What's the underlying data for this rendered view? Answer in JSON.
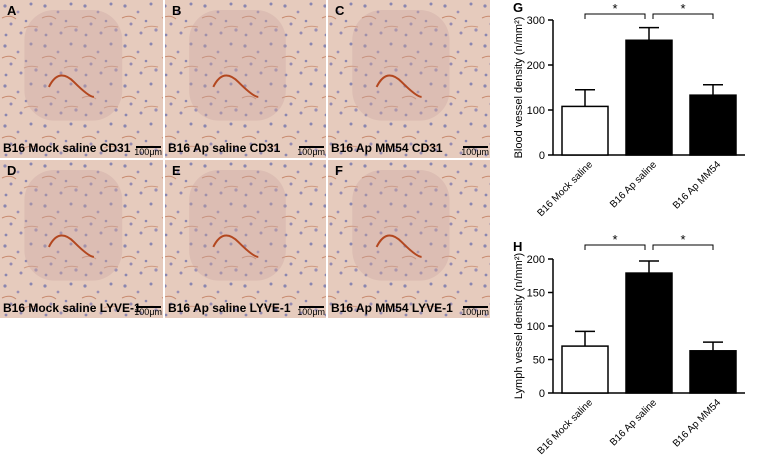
{
  "panels": [
    {
      "letter": "A",
      "caption": "B16 Mock saline CD31",
      "scale": "100μm"
    },
    {
      "letter": "B",
      "caption": "B16 Ap saline CD31",
      "scale": "100μm"
    },
    {
      "letter": "C",
      "caption": "B16 Ap MM54 CD31",
      "scale": "100μm"
    },
    {
      "letter": "D",
      "caption": "B16 Mock saline LYVE-1",
      "scale": "100μm"
    },
    {
      "letter": "E",
      "caption": "B16 Ap saline LYVE-1",
      "scale": "100μm"
    },
    {
      "letter": "F",
      "caption": "B16 Ap MM54 LYVE-1",
      "scale": "100μm"
    }
  ],
  "chart_data": [
    {
      "type": "bar",
      "panel": "G",
      "y_label": "Blood vessel density (n/mm²)",
      "categories": [
        "B16 Mock saline",
        "B16 Ap saline",
        "B16 Ap MM54"
      ],
      "values": [
        108,
        255,
        133
      ],
      "errors": [
        37,
        28,
        23
      ],
      "colors": [
        "#ffffff",
        "#000000",
        "#000000"
      ],
      "ylim": [
        0,
        300
      ],
      "yticks": [
        0,
        100,
        200,
        300
      ],
      "annotations": [
        "*",
        "*"
      ]
    },
    {
      "type": "bar",
      "panel": "H",
      "y_label": "Lymph vessel density (n/mm²)",
      "categories": [
        "B16 Mock saline",
        "B16 Ap saline",
        "B16 Ap MM54"
      ],
      "values": [
        70,
        179,
        63
      ],
      "errors": [
        22,
        18,
        13
      ],
      "colors": [
        "#ffffff",
        "#000000",
        "#000000"
      ],
      "ylim": [
        0,
        200
      ],
      "yticks": [
        0,
        50,
        100,
        150,
        200
      ],
      "annotations": [
        "*",
        "*"
      ]
    }
  ]
}
